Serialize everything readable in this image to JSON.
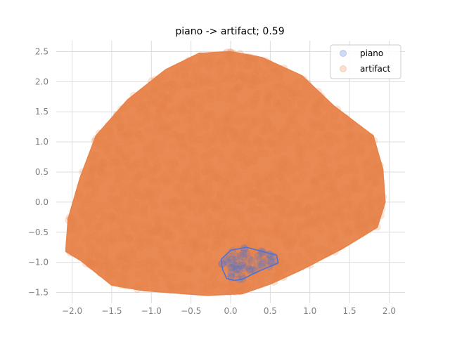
{
  "chart_data": {
    "type": "scatter",
    "title": "piano -> artifact; 0.59",
    "xlabel": "",
    "ylabel": "",
    "xlim": [
      -2.2,
      2.2
    ],
    "ylim": [
      -1.68,
      2.68
    ],
    "xticks": [
      -2.0,
      -1.5,
      -1.0,
      -0.5,
      0.0,
      0.5,
      1.0,
      1.5,
      2.0
    ],
    "xtick_labels": [
      "−2.0",
      "−1.5",
      "−1.0",
      "−0.5",
      "0.0",
      "0.5",
      "1.0",
      "1.5",
      "2.0"
    ],
    "yticks": [
      -1.5,
      -1.0,
      -0.5,
      0.0,
      0.5,
      1.0,
      1.5,
      2.0,
      2.5
    ],
    "ytick_labels": [
      "−1.5",
      "−1.0",
      "−0.5",
      "0.0",
      "0.5",
      "1.0",
      "1.5",
      "2.0",
      "2.5"
    ],
    "grid": true,
    "legend_position": "top-right",
    "series": [
      {
        "name": "piano",
        "color": "#4c72d9",
        "hull": [
          [
            -0.12,
            -0.95
          ],
          [
            0.0,
            -0.8
          ],
          [
            0.2,
            -0.75
          ],
          [
            0.58,
            -0.88
          ],
          [
            0.6,
            -1.01
          ],
          [
            0.35,
            -1.15
          ],
          [
            0.15,
            -1.28
          ],
          [
            0.05,
            -1.3
          ],
          [
            -0.05,
            -1.27
          ],
          [
            -0.1,
            -1.12
          ]
        ]
      },
      {
        "name": "artifact",
        "color": "#e8834a",
        "hull": [
          [
            -2.08,
            -0.82
          ],
          [
            -2.05,
            -0.28
          ],
          [
            -1.9,
            0.4
          ],
          [
            -1.7,
            1.1
          ],
          [
            -1.3,
            1.7
          ],
          [
            -0.82,
            2.2
          ],
          [
            -0.4,
            2.47
          ],
          [
            0.0,
            2.5
          ],
          [
            0.4,
            2.4
          ],
          [
            0.9,
            2.1
          ],
          [
            1.3,
            1.6
          ],
          [
            1.8,
            1.1
          ],
          [
            1.92,
            0.55
          ],
          [
            1.95,
            0.0
          ],
          [
            1.85,
            -0.42
          ],
          [
            1.4,
            -0.78
          ],
          [
            0.9,
            -1.12
          ],
          [
            0.5,
            -1.36
          ],
          [
            0.15,
            -1.52
          ],
          [
            -0.3,
            -1.55
          ],
          [
            -1.1,
            -1.47
          ],
          [
            -1.5,
            -1.38
          ],
          [
            -1.88,
            -0.98
          ]
        ]
      }
    ]
  }
}
